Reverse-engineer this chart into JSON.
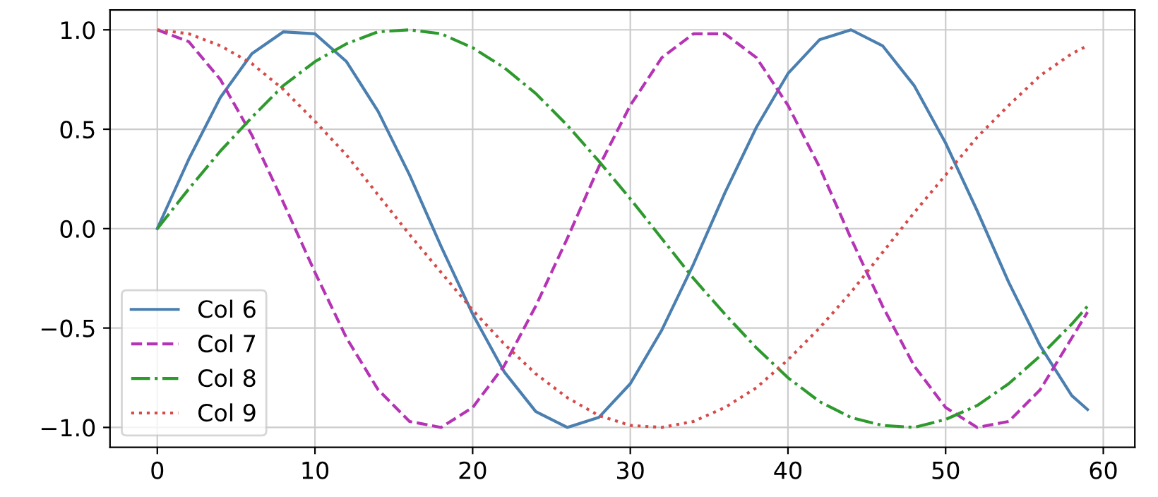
{
  "chart_data": {
    "type": "line",
    "x": [
      0,
      2,
      4,
      6,
      8,
      10,
      12,
      14,
      16,
      18,
      20,
      22,
      24,
      26,
      28,
      30,
      32,
      34,
      36,
      38,
      40,
      42,
      44,
      46,
      48,
      50,
      52,
      54,
      56,
      58,
      59
    ],
    "series": [
      {
        "name": "Col 6",
        "color": "#4a7fb0",
        "line_style": "solid",
        "values": [
          0,
          0.35,
          0.66,
          0.88,
          0.99,
          0.98,
          0.84,
          0.59,
          0.27,
          -0.09,
          -0.43,
          -0.72,
          -0.92,
          -1.0,
          -0.95,
          -0.78,
          -0.51,
          -0.18,
          0.18,
          0.51,
          0.78,
          0.95,
          1.0,
          0.92,
          0.72,
          0.43,
          0.09,
          -0.27,
          -0.59,
          -0.84,
          -0.91
        ]
      },
      {
        "name": "Col 7",
        "color": "#b534b5",
        "line_style": "dashed",
        "values": [
          1.0,
          0.94,
          0.75,
          0.47,
          0.13,
          -0.22,
          -0.55,
          -0.81,
          -0.97,
          -1.0,
          -0.9,
          -0.69,
          -0.39,
          -0.05,
          0.31,
          0.62,
          0.86,
          0.98,
          0.98,
          0.86,
          0.62,
          0.31,
          -0.05,
          -0.39,
          -0.69,
          -0.9,
          -1.0,
          -0.97,
          -0.81,
          -0.55,
          -0.42
        ]
      },
      {
        "name": "Col 8",
        "color": "#2e9a2e",
        "line_style": "dashdot",
        "values": [
          0,
          0.2,
          0.39,
          0.56,
          0.72,
          0.84,
          0.93,
          0.99,
          1.0,
          0.98,
          0.91,
          0.81,
          0.68,
          0.52,
          0.34,
          0.15,
          -0.05,
          -0.25,
          -0.43,
          -0.6,
          -0.75,
          -0.87,
          -0.95,
          -0.99,
          -1.0,
          -0.96,
          -0.89,
          -0.78,
          -0.64,
          -0.48,
          -0.39
        ]
      },
      {
        "name": "Col 9",
        "color": "#d64a4a",
        "line_style": "dotted",
        "values": [
          1.0,
          0.98,
          0.92,
          0.83,
          0.7,
          0.54,
          0.37,
          0.17,
          -0.03,
          -0.22,
          -0.41,
          -0.58,
          -0.73,
          -0.85,
          -0.94,
          -0.99,
          -1.0,
          -0.97,
          -0.9,
          -0.8,
          -0.66,
          -0.5,
          -0.32,
          -0.12,
          0.08,
          0.27,
          0.46,
          0.62,
          0.77,
          0.88,
          0.92
        ]
      }
    ],
    "xlim": [
      -3,
      62
    ],
    "ylim": [
      -1.1,
      1.1
    ],
    "xticks": [
      0,
      10,
      20,
      30,
      40,
      50,
      60
    ],
    "yticks": [
      {
        "value": -1,
        "label": "−1.0"
      },
      {
        "value": -0.5,
        "label": "−0.5"
      },
      {
        "value": 0,
        "label": "0.0"
      },
      {
        "value": 0.5,
        "label": "0.5"
      },
      {
        "value": 1,
        "label": "1.0"
      }
    ],
    "grid": true,
    "legend": "lower left",
    "marker": "none"
  }
}
